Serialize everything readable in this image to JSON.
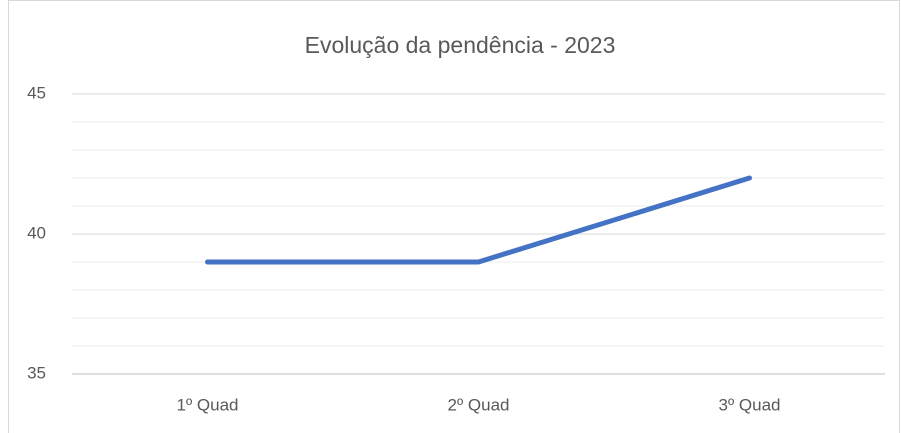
{
  "chart_data": {
    "type": "line",
    "title": "Evolução da pendência - 2023",
    "categories": [
      "1º Quad",
      "2º Quad",
      "3º Quad"
    ],
    "series": [
      {
        "name": "Pendência",
        "color": "#4472c4",
        "values": [
          39,
          39,
          42
        ]
      }
    ],
    "ylim": [
      35,
      45
    ],
    "yticks": [
      35,
      40,
      45
    ],
    "minor_yticks": [
      36,
      37,
      38,
      39,
      41,
      42,
      43,
      44
    ],
    "grid": true,
    "legend": false
  }
}
